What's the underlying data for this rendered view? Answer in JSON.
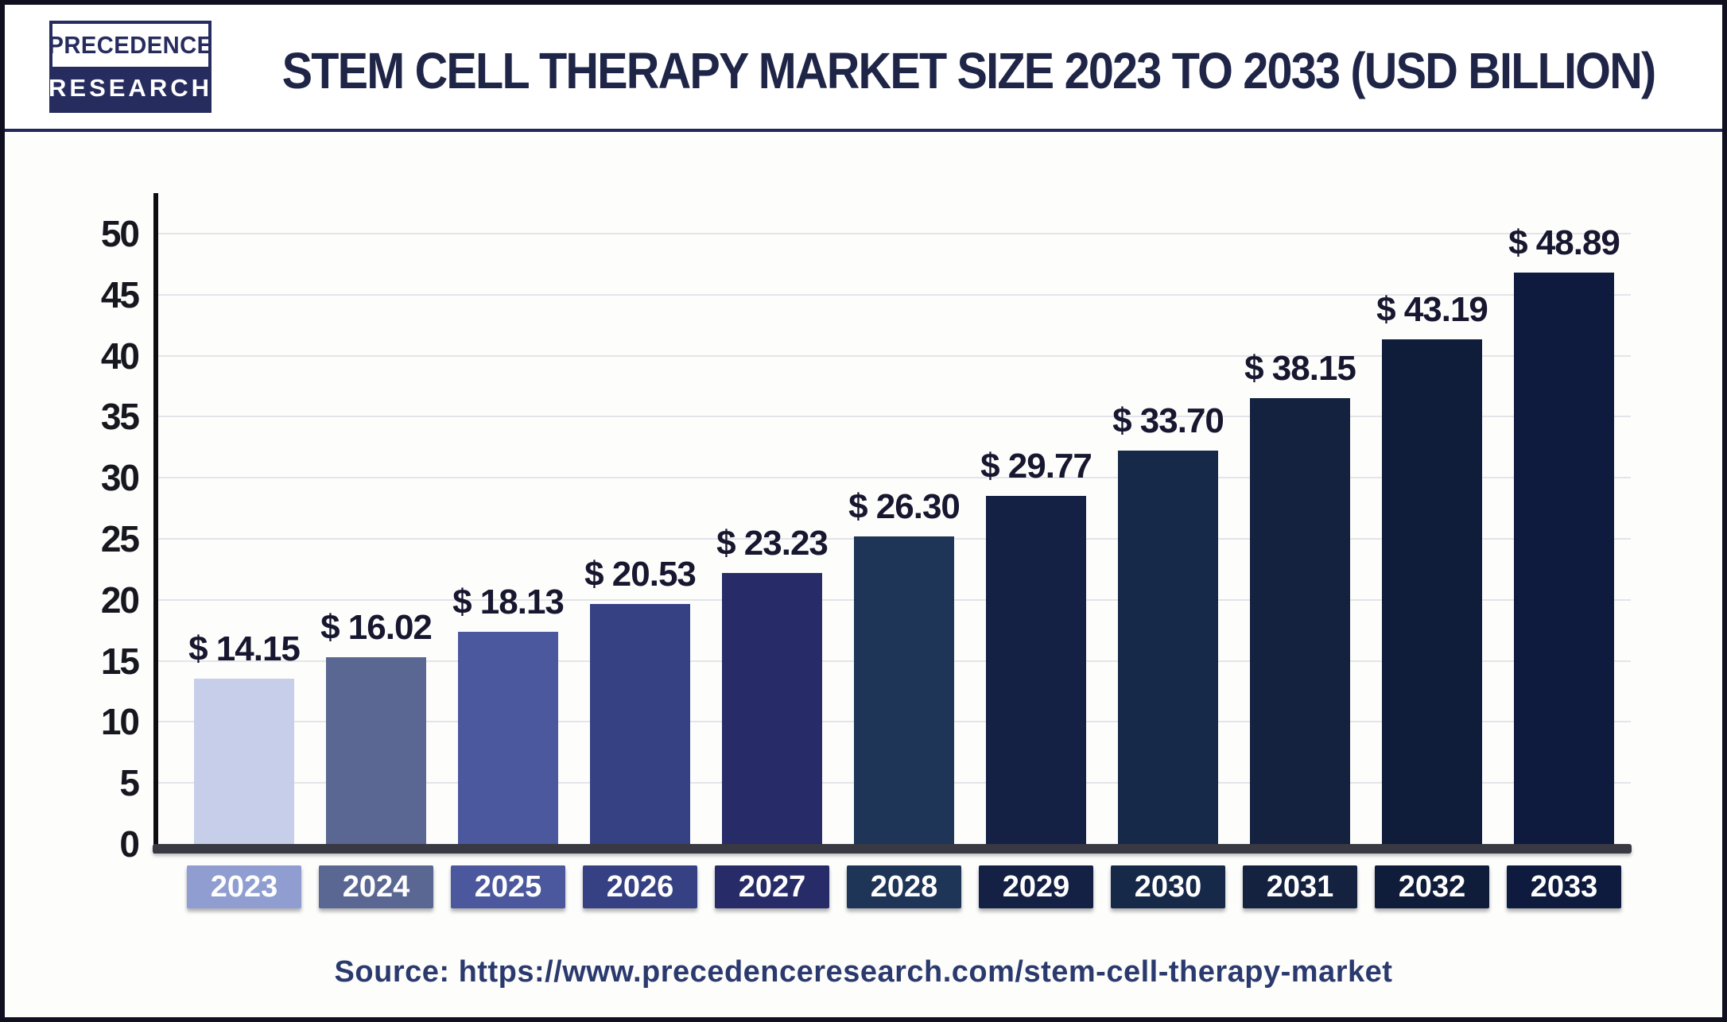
{
  "header": {
    "logo_line1": "PRECEDENCE",
    "logo_line2": "RESEARCH",
    "title": "STEM CELL THERAPY MARKET SIZE 2023 TO 2033 (USD BILLION)"
  },
  "chart_data": {
    "type": "bar",
    "title": "Stem Cell Therapy Market Size 2023 to 2033 (USD Billion)",
    "unit": "USD Billion",
    "currency_prefix": "$ ",
    "categories": [
      "2023",
      "2024",
      "2025",
      "2026",
      "2027",
      "2028",
      "2029",
      "2030",
      "2031",
      "2032",
      "2033"
    ],
    "values": [
      14.15,
      16.02,
      18.13,
      20.53,
      23.23,
      26.3,
      29.77,
      33.7,
      38.15,
      43.19,
      48.89
    ],
    "value_labels": [
      "$ 14.15",
      "$ 16.02",
      "$ 18.13",
      "$ 20.53",
      "$ 23.23",
      "$ 26.30",
      "$ 29.77",
      "$ 33.70",
      "$ 38.15",
      "$ 43.19",
      "$ 48.89"
    ],
    "xlabel": "",
    "ylabel": "",
    "ylim": [
      0,
      50
    ],
    "ytick_step": 5,
    "yticks": [
      0,
      5,
      10,
      15,
      20,
      25,
      30,
      35,
      40,
      45,
      50
    ],
    "grid": true,
    "legend": null,
    "bar_colors": [
      "#c6cee9",
      "#5a6793",
      "#4c589d",
      "#354182",
      "#272c69",
      "#1e3558",
      "#142145",
      "#172948",
      "#142240",
      "#0f1c3a",
      "#0e1b3e"
    ],
    "year_box_colors": [
      "#8f9dd0",
      "#5a6793",
      "#4c589d",
      "#354182",
      "#272c69",
      "#1e3558",
      "#142145",
      "#172948",
      "#142240",
      "#0f1c3a",
      "#0e1b3e"
    ]
  },
  "colors": {
    "title_text": "#1f2547",
    "axis_line": "#0c0c12",
    "baseline_bar": "#393943",
    "gridline": "#e4e4ea",
    "tick_text": "#17171f",
    "value_text": "#171730",
    "logo_navy": "#262c5e",
    "frame_border": "#101020",
    "source_text": "#2b3a6e"
  },
  "source": {
    "text": "Source: https://www.precedenceresearch.com/stem-cell-therapy-market"
  }
}
